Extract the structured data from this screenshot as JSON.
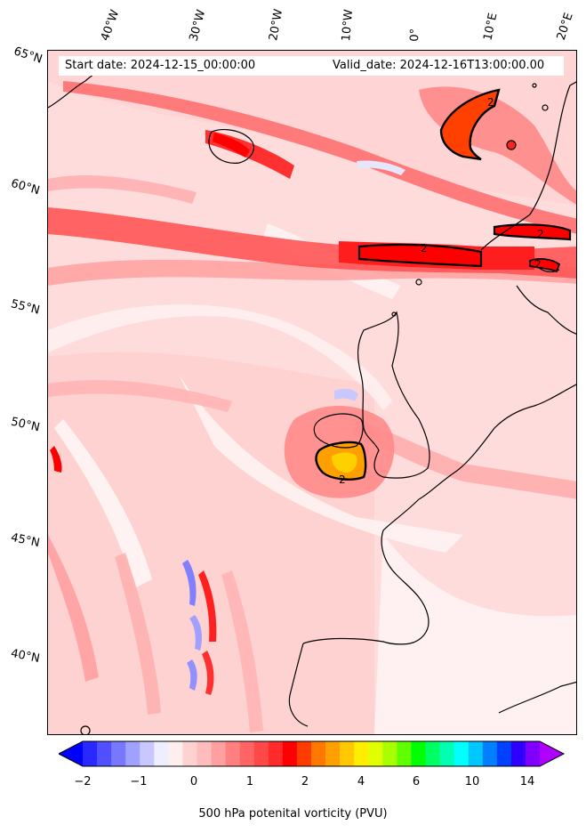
{
  "header": {
    "start_date": "Start date: 2024-12-15_00:00:00",
    "valid_date": "Valid_date: 2024-12-16T13:00:00.00"
  },
  "axes": {
    "longitude_labels": [
      "40°W",
      "30°W",
      "20°W",
      "10°W",
      "0°",
      "10°E",
      "20°E"
    ],
    "latitude_labels": [
      "65°N",
      "60°N",
      "55°N",
      "50°N",
      "45°N",
      "40°N"
    ]
  },
  "map": {
    "field": "500 hPa potential vorticity",
    "contour_label": "2",
    "colors": {
      "background": "#ffd9dc",
      "strong": "#ff3030",
      "core": "#ff0000",
      "peak": "#ffa000",
      "negative": "#6a6aff",
      "coast": "#000000"
    }
  },
  "colorbar": {
    "label": "500 hPa potenital vorticity (PVU)",
    "tick_labels": [
      "−2",
      "−1",
      "0",
      "1",
      "2",
      "4",
      "6",
      "10",
      "14"
    ],
    "colors": [
      "#0000ff",
      "#2828ff",
      "#5050ff",
      "#7878ff",
      "#a0a0ff",
      "#c8c8ff",
      "#eeeeff",
      "#ffeeee",
      "#ffd2d2",
      "#ffbcbc",
      "#ffa0a0",
      "#ff8080",
      "#ff6464",
      "#ff4848",
      "#ff2a2a",
      "#ff0000",
      "#ff3c00",
      "#ff7800",
      "#ffa000",
      "#ffc800",
      "#ffee00",
      "#e0ff00",
      "#a8ff00",
      "#60ff00",
      "#00ff00",
      "#00ff60",
      "#00ffb0",
      "#00ffff",
      "#00c8ff",
      "#0080ff",
      "#0040ff",
      "#3000ff",
      "#8000ff",
      "#b000ff"
    ]
  }
}
